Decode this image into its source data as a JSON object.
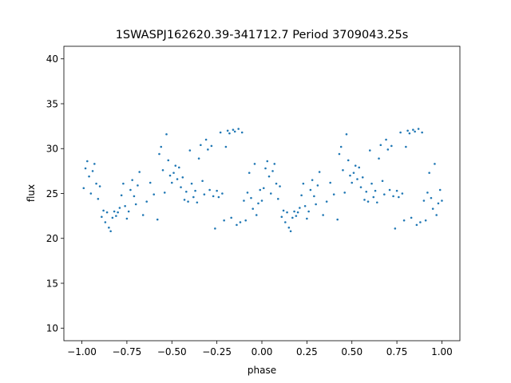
{
  "chart_data": {
    "type": "scatter",
    "title": "1SWASPJ162620.39-341712.7 Period 3709043.25s",
    "xlabel": "phase",
    "ylabel": "flux",
    "xlim": [
      -1.1,
      1.1
    ],
    "ylim": [
      8.6,
      41.4
    ],
    "xticks": [
      -1.0,
      -0.75,
      -0.5,
      -0.25,
      0.0,
      0.25,
      0.5,
      0.75,
      1.0
    ],
    "xtick_labels": [
      "−1.00",
      "−0.75",
      "−0.50",
      "−0.25",
      "0.00",
      "0.25",
      "0.50",
      "0.75",
      "1.00"
    ],
    "yticks": [
      10,
      15,
      20,
      25,
      30,
      35,
      40
    ],
    "ytick_labels": [
      "10",
      "15",
      "20",
      "25",
      "30",
      "35",
      "40"
    ],
    "grid": false,
    "legend": "none",
    "marker_color": "#1f77b4",
    "marker": "small-dot",
    "period_repeat": true,
    "series": [
      {
        "values": [
          [
            -0.99,
            25.6
          ],
          [
            -0.98,
            27.8
          ],
          [
            -0.97,
            28.6
          ],
          [
            -0.96,
            26.9
          ],
          [
            -0.95,
            25.0
          ],
          [
            -0.94,
            27.5
          ],
          [
            -0.93,
            28.3
          ],
          [
            -0.92,
            26.1
          ],
          [
            -0.91,
            24.4
          ],
          [
            -0.9,
            25.8
          ],
          [
            -0.89,
            22.4
          ],
          [
            -0.88,
            23.1
          ],
          [
            -0.87,
            21.8
          ],
          [
            -0.86,
            22.9
          ],
          [
            -0.85,
            21.2
          ],
          [
            -0.84,
            20.8
          ],
          [
            -0.83,
            22.3
          ],
          [
            -0.82,
            23.0
          ],
          [
            -0.81,
            22.5
          ],
          [
            -0.8,
            22.9
          ],
          [
            -0.79,
            23.4
          ],
          [
            -0.78,
            24.8
          ],
          [
            -0.77,
            26.1
          ],
          [
            -0.76,
            23.6
          ],
          [
            -0.75,
            22.2
          ],
          [
            -0.74,
            23.0
          ],
          [
            -0.73,
            25.4
          ],
          [
            -0.72,
            26.5
          ],
          [
            -0.71,
            24.7
          ],
          [
            -0.7,
            23.8
          ],
          [
            -0.69,
            25.9
          ],
          [
            -0.68,
            27.4
          ],
          [
            -0.66,
            22.6
          ],
          [
            -0.64,
            24.1
          ],
          [
            -0.62,
            26.2
          ],
          [
            -0.6,
            24.9
          ],
          [
            -0.58,
            22.1
          ],
          [
            -0.57,
            29.4
          ],
          [
            -0.56,
            30.2
          ],
          [
            -0.55,
            27.6
          ],
          [
            -0.54,
            25.1
          ],
          [
            -0.53,
            31.6
          ],
          [
            -0.52,
            28.7
          ],
          [
            -0.51,
            27.0
          ],
          [
            -0.5,
            26.2
          ],
          [
            -0.49,
            27.3
          ],
          [
            -0.48,
            28.1
          ],
          [
            -0.47,
            26.6
          ],
          [
            -0.46,
            27.9
          ],
          [
            -0.45,
            25.7
          ],
          [
            -0.44,
            26.8
          ],
          [
            -0.43,
            24.3
          ],
          [
            -0.42,
            25.2
          ],
          [
            -0.41,
            24.1
          ],
          [
            -0.4,
            29.8
          ],
          [
            -0.39,
            26.1
          ],
          [
            -0.38,
            24.6
          ],
          [
            -0.37,
            25.3
          ],
          [
            -0.36,
            24.0
          ],
          [
            -0.35,
            28.9
          ],
          [
            -0.34,
            30.4
          ],
          [
            -0.33,
            26.4
          ],
          [
            -0.32,
            24.9
          ],
          [
            -0.31,
            31.0
          ],
          [
            -0.3,
            29.9
          ],
          [
            -0.29,
            25.4
          ],
          [
            -0.28,
            30.3
          ],
          [
            -0.27,
            24.7
          ],
          [
            -0.26,
            21.1
          ],
          [
            -0.25,
            25.3
          ],
          [
            -0.24,
            24.6
          ],
          [
            -0.23,
            31.8
          ],
          [
            -0.22,
            25.0
          ],
          [
            -0.21,
            22.0
          ],
          [
            -0.2,
            30.2
          ],
          [
            -0.19,
            32.0
          ],
          [
            -0.18,
            31.7
          ],
          [
            -0.17,
            22.3
          ],
          [
            -0.16,
            32.1
          ],
          [
            -0.15,
            31.9
          ],
          [
            -0.14,
            21.5
          ],
          [
            -0.13,
            32.2
          ],
          [
            -0.12,
            21.8
          ],
          [
            -0.11,
            31.8
          ],
          [
            -0.1,
            24.2
          ],
          [
            -0.09,
            22.0
          ],
          [
            -0.08,
            25.1
          ],
          [
            -0.07,
            27.3
          ],
          [
            -0.06,
            24.5
          ],
          [
            -0.05,
            23.3
          ],
          [
            -0.04,
            28.3
          ],
          [
            -0.03,
            22.6
          ],
          [
            -0.02,
            23.9
          ],
          [
            -0.01,
            25.4
          ],
          [
            0.0,
            24.2
          ]
        ]
      }
    ]
  }
}
